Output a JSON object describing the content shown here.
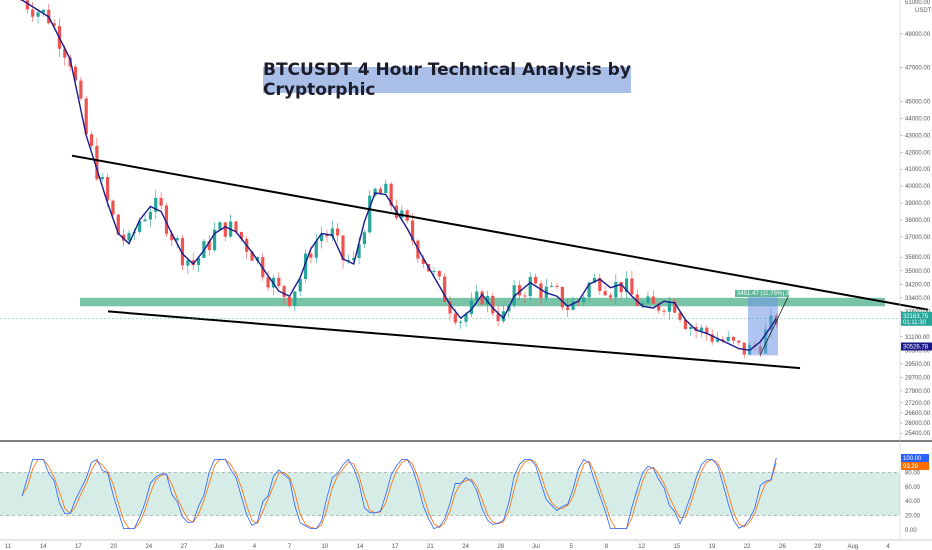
{
  "title": "BTCUSDT 4 Hour Technical Analysis by Cryptorphic",
  "colors": {
    "up": "#26a69a",
    "down": "#ef5350",
    "ma": "#1a1a8c",
    "zone": "#4caf8a",
    "projection": "#6f93e6",
    "trendline": "#000000",
    "stoch_k": "#2962ff",
    "stoch_d": "#ff6d00",
    "stoch_band": "#d6ece6"
  },
  "price_axis": {
    "currency": "USDT",
    "ticks": [
      "49000.00",
      "47000.00",
      "45000.00",
      "44000.00",
      "43000.00",
      "42000.00",
      "41000.00",
      "40000.00",
      "39000.00",
      "38000.00",
      "37000.00",
      "35800.00",
      "35000.00",
      "34200.00",
      "33400.00",
      "32600.00",
      "31100.00",
      "30300.00",
      "29500.00",
      "28700.00",
      "27900.00",
      "27200.00",
      "26600.00",
      "26000.00",
      "25400.00"
    ],
    "top_label": "51000.00",
    "current_price": "32163.75",
    "current_sub": "01:11:30",
    "ma_price": "30526.78"
  },
  "stoch_axis": {
    "ticks": [
      "80.00",
      "60.00",
      "40.00",
      "20.00",
      "0.00"
    ],
    "k_value": "100.00",
    "d_value": "93.29"
  },
  "time_axis": [
    "11",
    "14",
    "17",
    "20",
    "24",
    "27",
    "Jun",
    "4",
    "7",
    "10",
    "14",
    "17",
    "21",
    "24",
    "28",
    "Jul",
    "5",
    "8",
    "12",
    "15",
    "19",
    "22",
    "26",
    "29",
    "Aug",
    "4"
  ],
  "projection_label": "3451.47 (11.75%) 3451...",
  "chart_data": {
    "type": "candlestick",
    "title": "BTCUSDT 4 Hour Technical Analysis by Cryptorphic",
    "y_range": [
      25000,
      51000
    ],
    "x_range": [
      "May 11",
      "Aug 4"
    ],
    "moving_average_path": [
      [
        0,
        51000
      ],
      [
        5,
        50000
      ],
      [
        9,
        47500
      ],
      [
        12,
        43000
      ],
      [
        14,
        41000
      ],
      [
        16,
        39000
      ],
      [
        18,
        37200
      ],
      [
        20,
        36600
      ],
      [
        22,
        38000
      ],
      [
        24,
        38800
      ],
      [
        26,
        38500
      ],
      [
        28,
        37200
      ],
      [
        30,
        36000
      ],
      [
        32,
        35400
      ],
      [
        34,
        36200
      ],
      [
        36,
        37200
      ],
      [
        38,
        37600
      ],
      [
        40,
        37300
      ],
      [
        43,
        36100
      ],
      [
        46,
        34700
      ],
      [
        48,
        33800
      ],
      [
        50,
        33500
      ],
      [
        52,
        34600
      ],
      [
        54,
        36300
      ],
      [
        56,
        37200
      ],
      [
        58,
        37100
      ],
      [
        60,
        35700
      ],
      [
        62,
        35400
      ],
      [
        64,
        37900
      ],
      [
        66,
        39600
      ],
      [
        68,
        39500
      ],
      [
        70,
        38500
      ],
      [
        72,
        37500
      ],
      [
        74,
        36300
      ],
      [
        76,
        35200
      ],
      [
        78,
        34100
      ],
      [
        80,
        33000
      ],
      [
        82,
        32200
      ],
      [
        84,
        32700
      ],
      [
        86,
        33600
      ],
      [
        88,
        32800
      ],
      [
        90,
        32200
      ],
      [
        92,
        33500
      ],
      [
        95,
        34300
      ],
      [
        98,
        33700
      ],
      [
        100,
        33500
      ],
      [
        102,
        32900
      ],
      [
        104,
        33200
      ],
      [
        106,
        34200
      ],
      [
        108,
        34500
      ],
      [
        110,
        34000
      ],
      [
        112,
        34200
      ],
      [
        114,
        33500
      ],
      [
        116,
        32900
      ],
      [
        118,
        32800
      ],
      [
        120,
        33200
      ],
      [
        122,
        33100
      ],
      [
        124,
        32100
      ],
      [
        126,
        31500
      ],
      [
        128,
        31300
      ],
      [
        130,
        31000
      ],
      [
        132,
        30700
      ],
      [
        134,
        30400
      ],
      [
        136,
        30300
      ],
      [
        138,
        30800
      ],
      [
        140,
        31700
      ],
      [
        141,
        32200
      ]
    ],
    "support_resistance_zone": [
      32900,
      33400
    ],
    "upper_trendline": [
      [
        0,
        41800
      ],
      [
        165,
        32700
      ]
    ],
    "lower_trendline": [
      [
        0,
        32600
      ],
      [
        150,
        29250
      ]
    ],
    "projection_range": [
      30000,
      33451.47
    ],
    "stochastic": {
      "upper_band": 80,
      "lower_band": 20,
      "k_last": 100.0,
      "d_last": 93.29
    }
  }
}
